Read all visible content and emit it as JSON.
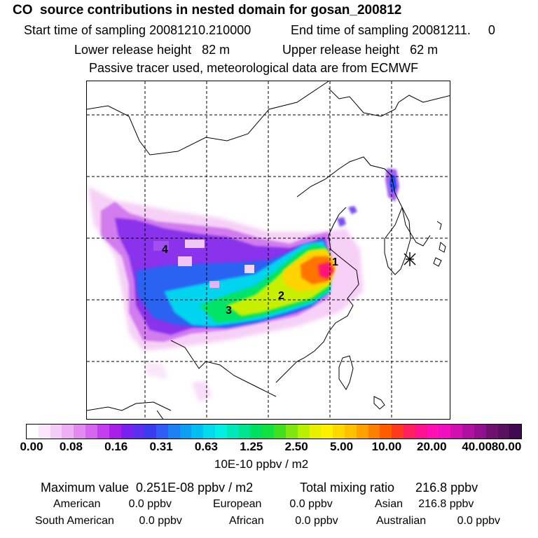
{
  "header": {
    "title": "CO  source contributions in nested domain for gosan_200812",
    "start_label": "Start time of sampling 20081210.210000",
    "end_label": "End time of sampling 20081211.     0",
    "lower_height": "Lower release height   82 m",
    "upper_height": "Upper release height   62 m",
    "tracer_note": "Passive tracer used, meteorological data are from ECMWF"
  },
  "map": {
    "labels": [
      "1",
      "2",
      "3",
      "4"
    ],
    "marker": "receptor-star"
  },
  "colorbar": {
    "ticks": [
      "0.00",
      "0.08",
      "0.16",
      "0.31",
      "0.63",
      "1.25",
      "2.50",
      "5.00",
      "10.00",
      "20.00",
      "40.00",
      "80.00"
    ],
    "units": "10E-10 ppbv / m2",
    "colors": [
      "#ffffff",
      "#fbe6fb",
      "#f4ccf6",
      "#eeaef4",
      "#e28af2",
      "#d466f0",
      "#c23eee",
      "#a81fe8",
      "#7a20f0",
      "#5b2ef0",
      "#3a3cf0",
      "#2f5cf4",
      "#1d80f2",
      "#0ca0f2",
      "#00bef0",
      "#00dcec",
      "#00f0e4",
      "#00e8b8",
      "#00e490",
      "#00e060",
      "#10e040",
      "#40e020",
      "#80e610",
      "#b8f000",
      "#e6f000",
      "#fff000",
      "#ffd800",
      "#ffc000",
      "#ffa200",
      "#ff8000",
      "#ff5c00",
      "#ff3820",
      "#ff1e60",
      "#ff1090",
      "#ff10b4",
      "#f010c0",
      "#d010b0",
      "#b010a0",
      "#901090",
      "#701070",
      "#581060",
      "#400850"
    ]
  },
  "stats": {
    "max_value": "Maximum value  0.251E-08 ppbv / m2",
    "total_mixing": "Total mixing ratio      216.8 ppbv",
    "american": "American         0.0 ppbv",
    "european": "European         0.0 ppbv",
    "asian": "Asian     216.8 ppbv",
    "south_american": "South American        0.0 ppbv",
    "african": "African          0.0 ppbv",
    "australian": "Australian          0.0 ppbv"
  }
}
